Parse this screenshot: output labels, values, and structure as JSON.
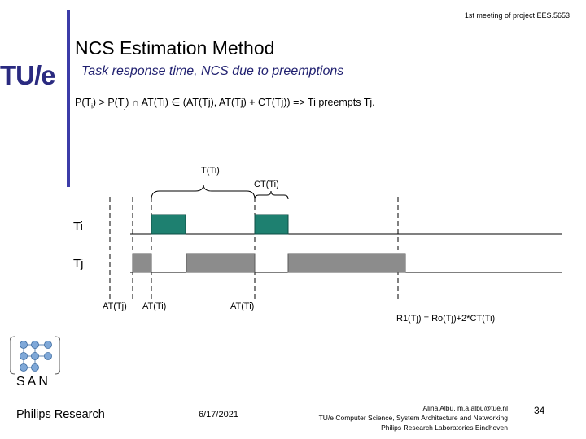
{
  "header": {
    "meeting": "1st meeting of project EES.5653"
  },
  "logo": {
    "text": "TU/e"
  },
  "slide": {
    "title": "NCS Estimation Method",
    "subtitle": "Task response time, NCS due to preemptions",
    "condition": {
      "p1": "P(T",
      "s1": "i",
      "p2": ") > P(T",
      "s2": "j",
      "p3": ") ∩ AT(Ti) ∈ (AT(Tj), AT(Tj) + CT(Tj)) => Ti preempts Tj."
    }
  },
  "diagram": {
    "brace_label_period": "T(Ti)",
    "brace_label_ct": "CT(Ti)",
    "row_ti": "Ti",
    "row_tj": "Tj",
    "at_tj": "AT(Tj)",
    "at_ti_1": "AT(Ti)",
    "at_ti_2": "AT(Ti)",
    "formula": "R1(Tj) = Ro(Tj)+2*CT(Ti)",
    "colors": {
      "ti_block": "#1e8070",
      "tj_block": "#8c8c8c"
    }
  },
  "san_logo": {
    "text": "SAN"
  },
  "footer": {
    "org": "Philips Research",
    "date": "6/17/2021",
    "author_line1": "Alina Albu, m.a.albu@tue.nl",
    "author_line2": "TU/e Computer Science, System Architecture and Networking",
    "author_line3": "Philips Research Laboratories Eindhoven",
    "page": "34"
  }
}
